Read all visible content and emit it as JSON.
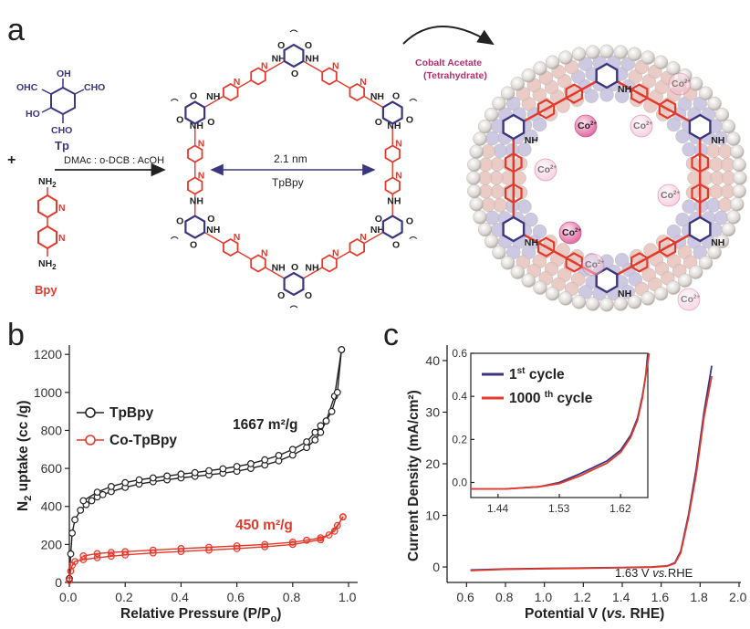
{
  "panel_a": {
    "label": "a",
    "tp_formula": {
      "oh_top": "OH",
      "cho_left": "OHC",
      "cho_right": "CHO",
      "ho": "HO",
      "cho_bottom": "CHO"
    },
    "tp_name": "Tp",
    "plus": "+",
    "bpy_name": "Bpy",
    "nh2_top": "NH",
    "nh2_bottom": "NH",
    "nh2_sub": "2",
    "solvent": "DMAc : o-DCB : AcOH",
    "pore_size": "2.1 nm",
    "framework_name": "TpBpy",
    "reagent_line1": "Cobalt Acetate",
    "reagent_line2": "(Tetrahydrate)",
    "co_ion": "Co",
    "co_charge": "2+",
    "nh": "NH",
    "hn": "HN",
    "o": "O",
    "n": "N",
    "colors": {
      "tp": "#3b3680",
      "bpy": "#e33a2c",
      "cobalt": "#b2316f"
    }
  },
  "panel_b": {
    "label": "b",
    "chart_data": {
      "type": "line",
      "xlabel_main": "Relative Pressure (P/P",
      "xlabel_sub": "o",
      "xlabel_close": ")",
      "ylabel_main": "N",
      "ylabel_sub": "2",
      "ylabel_rest": " uptake (cc /g)",
      "xlim": [
        0,
        1.0
      ],
      "ylim": [
        0,
        1250
      ],
      "xticks": [
        "0.0",
        "0.2",
        "0.4",
        "0.6",
        "0.8",
        "1.0"
      ],
      "yticks": [
        "0",
        "200",
        "400",
        "600",
        "800",
        "1000",
        "1200"
      ],
      "legend_position": "top-left",
      "series": [
        {
          "name": "TpBpy",
          "color": "#222222",
          "adsorption": [
            [
              0,
              20
            ],
            [
              0.005,
              150
            ],
            [
              0.01,
              260
            ],
            [
              0.02,
              330
            ],
            [
              0.04,
              380
            ],
            [
              0.06,
              410
            ],
            [
              0.08,
              430
            ],
            [
              0.1,
              450
            ],
            [
              0.12,
              462
            ],
            [
              0.15,
              478
            ],
            [
              0.2,
              500
            ],
            [
              0.25,
              518
            ],
            [
              0.3,
              530
            ],
            [
              0.35,
              540
            ],
            [
              0.4,
              550
            ],
            [
              0.45,
              558
            ],
            [
              0.5,
              566
            ],
            [
              0.55,
              575
            ],
            [
              0.6,
              585
            ],
            [
              0.65,
              600
            ],
            [
              0.7,
              618
            ],
            [
              0.75,
              640
            ],
            [
              0.8,
              670
            ],
            [
              0.85,
              710
            ],
            [
              0.88,
              750
            ],
            [
              0.9,
              790
            ],
            [
              0.92,
              850
            ],
            [
              0.95,
              980
            ],
            [
              0.975,
              1225
            ]
          ],
          "desorption": [
            [
              0.975,
              1225
            ],
            [
              0.96,
              1000
            ],
            [
              0.94,
              900
            ],
            [
              0.92,
              850
            ],
            [
              0.9,
              825
            ],
            [
              0.88,
              790
            ],
            [
              0.85,
              740
            ],
            [
              0.8,
              700
            ],
            [
              0.75,
              668
            ],
            [
              0.7,
              645
            ],
            [
              0.65,
              625
            ],
            [
              0.6,
              610
            ],
            [
              0.55,
              598
            ],
            [
              0.5,
              588
            ],
            [
              0.45,
              578
            ],
            [
              0.4,
              570
            ],
            [
              0.35,
              560
            ],
            [
              0.3,
              550
            ],
            [
              0.25,
              540
            ],
            [
              0.2,
              525
            ],
            [
              0.15,
              505
            ],
            [
              0.1,
              475
            ],
            [
              0.05,
              430
            ]
          ]
        },
        {
          "name": "Co-TpBpy",
          "color": "#e33a2c",
          "adsorption": [
            [
              0,
              10
            ],
            [
              0.005,
              60
            ],
            [
              0.01,
              90
            ],
            [
              0.02,
              110
            ],
            [
              0.05,
              120
            ],
            [
              0.1,
              130
            ],
            [
              0.15,
              138
            ],
            [
              0.2,
              145
            ],
            [
              0.3,
              155
            ],
            [
              0.4,
              163
            ],
            [
              0.5,
              170
            ],
            [
              0.6,
              178
            ],
            [
              0.7,
              188
            ],
            [
              0.8,
              200
            ],
            [
              0.9,
              225
            ],
            [
              0.95,
              270
            ],
            [
              0.98,
              345
            ]
          ],
          "desorption": [
            [
              0.98,
              345
            ],
            [
              0.96,
              300
            ],
            [
              0.93,
              250
            ],
            [
              0.9,
              235
            ],
            [
              0.85,
              222
            ],
            [
              0.8,
              212
            ],
            [
              0.7,
              200
            ],
            [
              0.6,
              192
            ],
            [
              0.5,
              185
            ],
            [
              0.4,
              178
            ],
            [
              0.3,
              170
            ],
            [
              0.2,
              162
            ],
            [
              0.15,
              158
            ],
            [
              0.1,
              152
            ],
            [
              0.05,
              140
            ]
          ]
        }
      ],
      "annotations": [
        {
          "text": "1667 m²/g",
          "color": "#222222",
          "at": [
            0.72,
            720
          ]
        },
        {
          "text": "450 m²/g",
          "color": "#e33a2c",
          "at": [
            0.72,
            265
          ]
        }
      ]
    }
  },
  "panel_c": {
    "label": "c",
    "chart_data": {
      "type": "line",
      "xlabel_main": "Potential V (",
      "xlabel_italic": "vs.",
      "xlabel_end": " RHE)",
      "ylabel": "Current Density (mA/cm²)",
      "xlim": [
        0.5,
        2.0
      ],
      "ylim": [
        -3,
        43
      ],
      "xticks": [
        "0.6",
        "0.8",
        "1.0",
        "1.2",
        "1.4",
        "1.6",
        "1.8",
        "2.0"
      ],
      "yticks": [
        "0",
        "10",
        "20",
        "30",
        "40"
      ],
      "annotation": "1.63 V vs.RHE",
      "annotation_pre": "1.63 V ",
      "annotation_italic": "vs.",
      "annotation_post": "RHE",
      "series": [
        {
          "name": "1st cycle",
          "color": "#3b3680",
          "points": [
            [
              0.62,
              -0.6
            ],
            [
              0.8,
              -0.4
            ],
            [
              1.0,
              -0.3
            ],
            [
              1.2,
              -0.2
            ],
            [
              1.4,
              -0.1
            ],
            [
              1.55,
              0.0
            ],
            [
              1.63,
              0.2
            ],
            [
              1.67,
              0.8
            ],
            [
              1.7,
              3
            ],
            [
              1.74,
              10
            ],
            [
              1.78,
              19
            ],
            [
              1.82,
              30
            ],
            [
              1.86,
              39
            ]
          ]
        },
        {
          "name": "1000th cycle",
          "color": "#e33a2c",
          "points": [
            [
              0.62,
              -0.7
            ],
            [
              0.8,
              -0.45
            ],
            [
              1.0,
              -0.35
            ],
            [
              1.2,
              -0.25
            ],
            [
              1.4,
              -0.15
            ],
            [
              1.55,
              -0.05
            ],
            [
              1.63,
              0.15
            ],
            [
              1.67,
              0.7
            ],
            [
              1.7,
              2.7
            ],
            [
              1.74,
              9.5
            ],
            [
              1.78,
              18
            ],
            [
              1.82,
              29
            ],
            [
              1.86,
              37
            ]
          ]
        }
      ],
      "legend": {
        "l1_pre": "1",
        "l1_sup": "st",
        "l1_post": " cycle",
        "l2_pre": "1000 ",
        "l2_sup": "th",
        "l2_post": " cycle"
      },
      "inset": {
        "xlim": [
          1.4,
          1.66
        ],
        "ylim": [
          -0.07,
          0.6
        ],
        "xticks": [
          "1.44",
          "1.53",
          "1.62"
        ],
        "yticks": [
          "0.0",
          "0.2",
          "0.4",
          "0.6"
        ],
        "series": [
          {
            "name": "1st cycle",
            "points": [
              [
                1.4,
                -0.03
              ],
              [
                1.45,
                -0.03
              ],
              [
                1.5,
                -0.02
              ],
              [
                1.53,
                0.0
              ],
              [
                1.56,
                0.04
              ],
              [
                1.58,
                0.07
              ],
              [
                1.6,
                0.1
              ],
              [
                1.62,
                0.15
              ],
              [
                1.635,
                0.22
              ],
              [
                1.645,
                0.3
              ],
              [
                1.652,
                0.4
              ],
              [
                1.657,
                0.5
              ],
              [
                1.66,
                0.6
              ]
            ]
          },
          {
            "name": "1000th cycle",
            "points": [
              [
                1.4,
                -0.03
              ],
              [
                1.45,
                -0.03
              ],
              [
                1.5,
                -0.02
              ],
              [
                1.53,
                -0.005
              ],
              [
                1.56,
                0.03
              ],
              [
                1.58,
                0.06
              ],
              [
                1.6,
                0.09
              ],
              [
                1.62,
                0.14
              ],
              [
                1.635,
                0.21
              ],
              [
                1.645,
                0.29
              ],
              [
                1.652,
                0.39
              ],
              [
                1.657,
                0.5
              ],
              [
                1.662,
                0.6
              ]
            ]
          }
        ]
      }
    }
  }
}
